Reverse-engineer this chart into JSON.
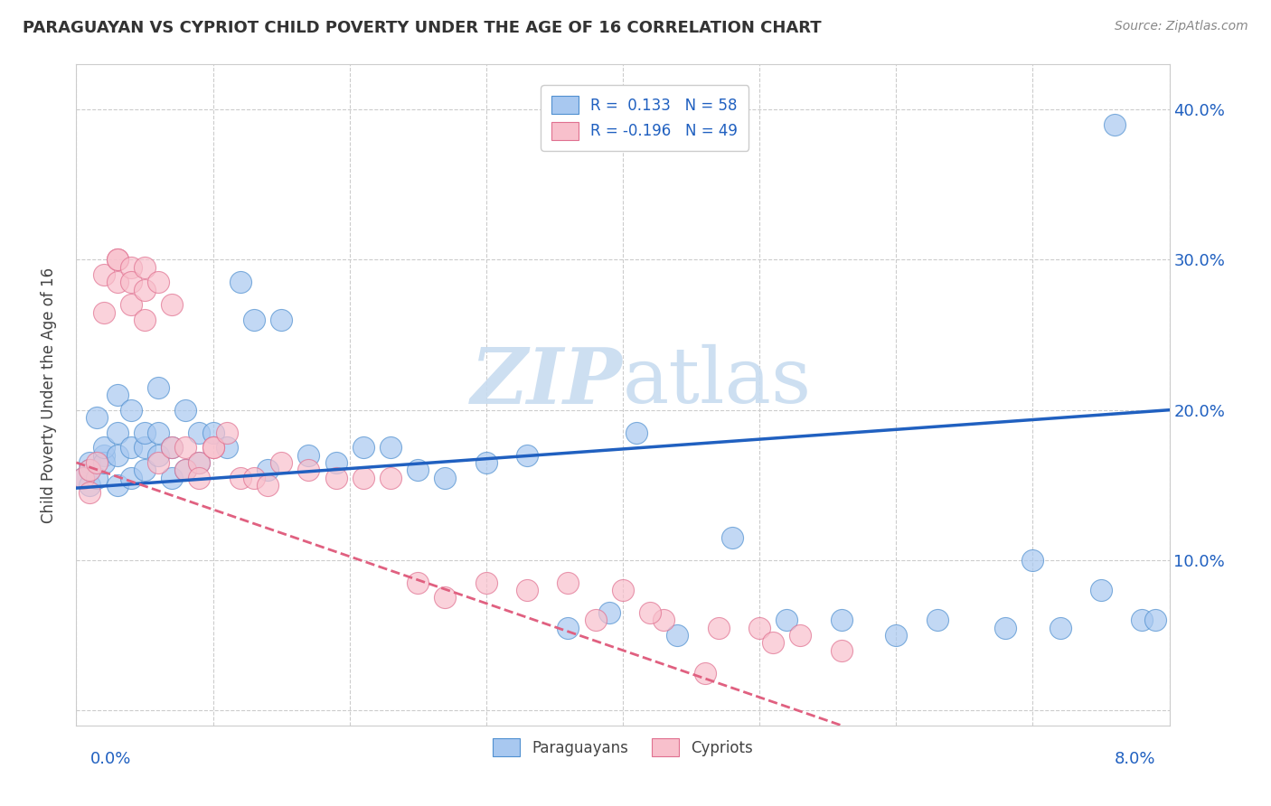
{
  "title": "PARAGUAYAN VS CYPRIOT CHILD POVERTY UNDER THE AGE OF 16 CORRELATION CHART",
  "source": "Source: ZipAtlas.com",
  "ylabel": "Child Poverty Under the Age of 16",
  "xmin": 0.0,
  "xmax": 0.08,
  "ymin": -0.01,
  "ymax": 0.43,
  "blue_color": "#A8C8F0",
  "blue_edge": "#5090D0",
  "pink_color": "#F8C0CC",
  "pink_edge": "#E07090",
  "blue_line_color": "#2060C0",
  "pink_line_color": "#E06080",
  "watermark_color": "#C8DCF0",
  "par_x": [
    0.0005,
    0.001,
    0.001,
    0.001,
    0.0015,
    0.0015,
    0.002,
    0.002,
    0.002,
    0.003,
    0.003,
    0.003,
    0.003,
    0.004,
    0.004,
    0.004,
    0.005,
    0.005,
    0.005,
    0.006,
    0.006,
    0.006,
    0.007,
    0.007,
    0.008,
    0.008,
    0.009,
    0.009,
    0.01,
    0.011,
    0.012,
    0.013,
    0.014,
    0.015,
    0.017,
    0.019,
    0.021,
    0.023,
    0.025,
    0.027,
    0.03,
    0.033,
    0.036,
    0.039,
    0.041,
    0.044,
    0.048,
    0.052,
    0.056,
    0.06,
    0.063,
    0.068,
    0.072,
    0.076,
    0.07,
    0.075,
    0.078,
    0.079
  ],
  "par_y": [
    0.155,
    0.15,
    0.165,
    0.16,
    0.155,
    0.195,
    0.17,
    0.165,
    0.175,
    0.15,
    0.17,
    0.185,
    0.21,
    0.155,
    0.175,
    0.2,
    0.16,
    0.175,
    0.185,
    0.17,
    0.185,
    0.215,
    0.155,
    0.175,
    0.16,
    0.2,
    0.165,
    0.185,
    0.185,
    0.175,
    0.285,
    0.26,
    0.16,
    0.26,
    0.17,
    0.165,
    0.175,
    0.175,
    0.16,
    0.155,
    0.165,
    0.17,
    0.055,
    0.065,
    0.185,
    0.05,
    0.115,
    0.06,
    0.06,
    0.05,
    0.06,
    0.055,
    0.055,
    0.39,
    0.1,
    0.08,
    0.06,
    0.06
  ],
  "cyp_x": [
    0.0005,
    0.001,
    0.001,
    0.0015,
    0.002,
    0.002,
    0.003,
    0.003,
    0.003,
    0.004,
    0.004,
    0.004,
    0.005,
    0.005,
    0.005,
    0.006,
    0.006,
    0.007,
    0.007,
    0.008,
    0.008,
    0.009,
    0.009,
    0.01,
    0.01,
    0.011,
    0.012,
    0.013,
    0.014,
    0.015,
    0.017,
    0.019,
    0.021,
    0.023,
    0.025,
    0.027,
    0.03,
    0.033,
    0.036,
    0.04,
    0.043,
    0.047,
    0.05,
    0.053,
    0.056,
    0.038,
    0.042,
    0.046,
    0.051
  ],
  "cyp_y": [
    0.155,
    0.145,
    0.16,
    0.165,
    0.265,
    0.29,
    0.3,
    0.285,
    0.3,
    0.295,
    0.285,
    0.27,
    0.295,
    0.28,
    0.26,
    0.285,
    0.165,
    0.175,
    0.27,
    0.175,
    0.16,
    0.165,
    0.155,
    0.175,
    0.175,
    0.185,
    0.155,
    0.155,
    0.15,
    0.165,
    0.16,
    0.155,
    0.155,
    0.155,
    0.085,
    0.075,
    0.085,
    0.08,
    0.085,
    0.08,
    0.06,
    0.055,
    0.055,
    0.05,
    0.04,
    0.06,
    0.065,
    0.025,
    0.045
  ]
}
